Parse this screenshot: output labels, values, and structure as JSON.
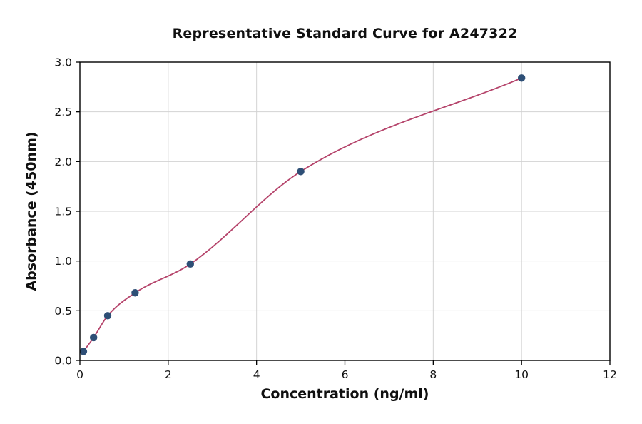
{
  "chart_data": {
    "type": "scatter",
    "title": "Representative Standard Curve for A247322",
    "xlabel": "Concentration (ng/ml)",
    "ylabel": "Absorbance (450nm)",
    "xlim": [
      0,
      12
    ],
    "ylim": [
      0.0,
      3.0
    ],
    "x_ticks": [
      0,
      2,
      4,
      6,
      8,
      10,
      12
    ],
    "x_tick_labels": [
      "0",
      "2",
      "4",
      "6",
      "8",
      "10",
      "12"
    ],
    "y_ticks": [
      0.0,
      0.5,
      1.0,
      1.5,
      2.0,
      2.5,
      3.0
    ],
    "y_tick_labels": [
      "0.0",
      "0.5",
      "1.0",
      "1.5",
      "2.0",
      "2.5",
      "3.0"
    ],
    "grid": true,
    "legend": "none",
    "points": [
      {
        "x": 0.08,
        "y": 0.09
      },
      {
        "x": 0.31,
        "y": 0.23
      },
      {
        "x": 0.63,
        "y": 0.45
      },
      {
        "x": 1.25,
        "y": 0.68
      },
      {
        "x": 2.5,
        "y": 0.97
      },
      {
        "x": 5.0,
        "y": 1.9
      },
      {
        "x": 10.0,
        "y": 2.84
      }
    ],
    "colors": {
      "point_color": "#2e4f76",
      "curve_color": "#b5446b",
      "grid_color": "#d2d2d2",
      "axis_color": "#000000",
      "text_color": "#101010",
      "background": "#ffffff"
    }
  }
}
